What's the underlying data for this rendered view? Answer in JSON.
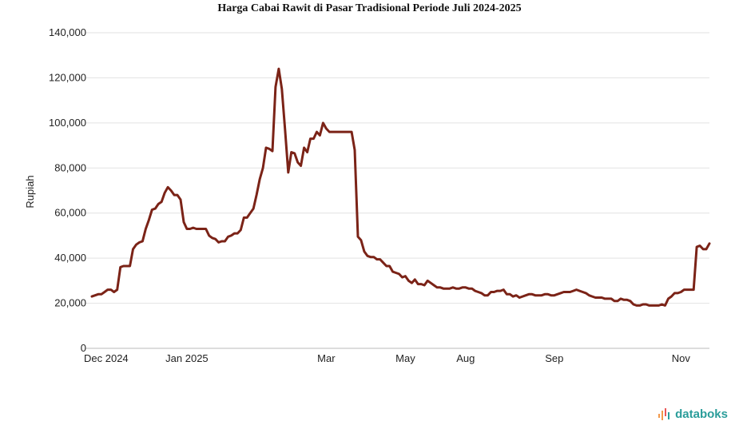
{
  "chart_data": {
    "type": "line",
    "title": "Harga Cabai Rawit di Pasar Tradisional Periode Juli 2024-2025",
    "ylabel": "Rupiah",
    "ylim": [
      0,
      140000
    ],
    "yticks": [
      0,
      20000,
      40000,
      60000,
      80000,
      100000,
      120000,
      140000
    ],
    "ytick_labels": [
      "0",
      "20,000",
      "40,000",
      "60,000",
      "80,000",
      "100,000",
      "120,000",
      "140,000"
    ],
    "xtick_labels": [
      {
        "label": "Dec 2024",
        "index": 0
      },
      {
        "label": "Jan 2025",
        "index": 30
      },
      {
        "label": "Mar",
        "index": 74
      },
      {
        "label": "May",
        "index": 99
      },
      {
        "label": "Aug",
        "index": 118
      },
      {
        "label": "Sep",
        "index": 146
      },
      {
        "label": "Nov",
        "index": 186
      }
    ],
    "grid": true,
    "line_color": "#7b2317",
    "series": [
      {
        "name": "",
        "values": [
          23000,
          23500,
          24000,
          24000,
          25000,
          26000,
          26000,
          25000,
          26000,
          36000,
          36500,
          36500,
          36500,
          44000,
          46000,
          47000,
          47500,
          53000,
          57000,
          61500,
          62000,
          64000,
          65000,
          69000,
          71500,
          70000,
          68000,
          68000,
          66000,
          56000,
          53000,
          53000,
          53500,
          53000,
          53000,
          53000,
          53000,
          50000,
          49000,
          48500,
          47000,
          47500,
          47500,
          49500,
          50000,
          51000,
          51000,
          52500,
          58000,
          58000,
          60000,
          62000,
          68000,
          75000,
          80000,
          89000,
          88500,
          87500,
          116000,
          124000,
          115000,
          97000,
          78000,
          87000,
          86500,
          82500,
          81000,
          89000,
          87000,
          93000,
          93000,
          96000,
          94500,
          100000,
          97500,
          96000,
          96000,
          96000,
          96000,
          96000,
          96000,
          96000,
          96000,
          88000,
          49500,
          48000,
          43000,
          41000,
          40500,
          40500,
          39500,
          39500,
          38000,
          36500,
          36500,
          34000,
          33500,
          33000,
          31500,
          32000,
          30000,
          29000,
          30500,
          28500,
          28500,
          28000,
          30000,
          29000,
          28000,
          27000,
          27000,
          26500,
          26500,
          26500,
          27000,
          26500,
          26500,
          27000,
          27000,
          26500,
          26500,
          25500,
          25000,
          24500,
          23500,
          23500,
          25000,
          25000,
          25500,
          25500,
          26000,
          24000,
          24000,
          23000,
          23500,
          22500,
          23000,
          23500,
          24000,
          24000,
          23500,
          23500,
          23500,
          24000,
          24000,
          23500,
          23500,
          24000,
          24500,
          25000,
          25000,
          25000,
          25500,
          26000,
          25500,
          25000,
          24500,
          23500,
          23000,
          22500,
          22500,
          22500,
          22000,
          22000,
          22000,
          21000,
          21000,
          22000,
          21500,
          21500,
          21000,
          19500,
          19000,
          19000,
          19500,
          19500,
          19000,
          19000,
          19000,
          19000,
          19500,
          19000,
          22000,
          23000,
          24500,
          24500,
          25000,
          26000,
          26000,
          26000,
          26000,
          45000,
          45500,
          44000,
          44000,
          46500
        ]
      }
    ]
  },
  "brand": {
    "name": "databoks"
  }
}
